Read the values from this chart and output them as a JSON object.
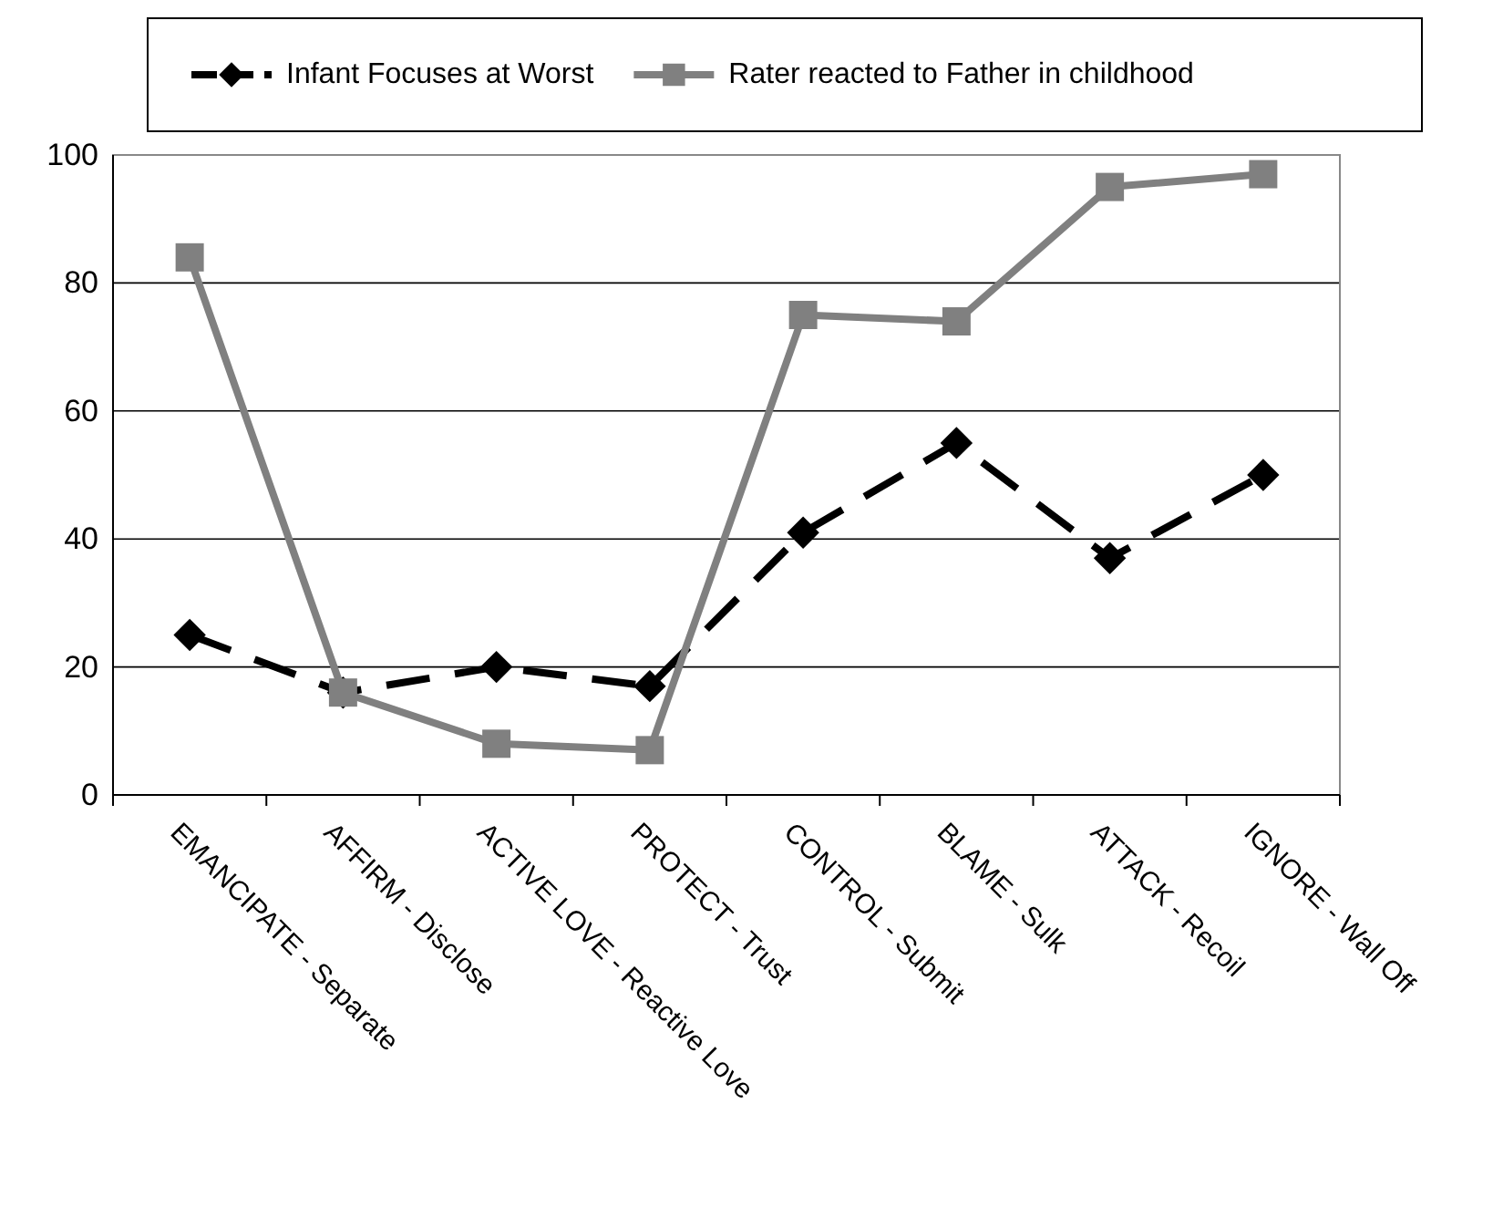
{
  "chart_data": {
    "type": "line",
    "categories": [
      "EMANCIPATE - Separate",
      "AFFIRM - Disclose",
      "ACTIVE LOVE - Reactive Love",
      "PROTECT - Trust",
      "CONTROL - Submit",
      "BLAME - Sulk",
      "ATTACK - Recoil",
      "IGNORE - Wall Off"
    ],
    "series": [
      {
        "name": "Infant Focuses at Worst",
        "color": "#000000",
        "marker": "diamond",
        "line_style": "dashed",
        "values": [
          25,
          16,
          20,
          17,
          41,
          55,
          37,
          50
        ]
      },
      {
        "name": "Rater reacted to Father in childhood",
        "color": "#808080",
        "marker": "square",
        "line_style": "solid",
        "values": [
          84,
          16,
          8,
          7,
          75,
          74,
          95,
          97
        ]
      }
    ],
    "ylim": [
      0,
      100
    ],
    "yticks": [
      0,
      20,
      40,
      60,
      80,
      100
    ],
    "grid": "y",
    "legend": "top"
  }
}
